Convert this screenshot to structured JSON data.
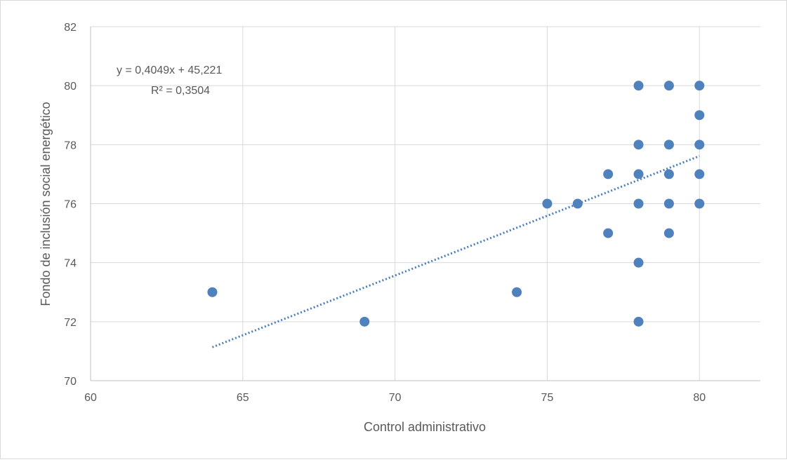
{
  "chart_data": {
    "type": "scatter",
    "title": "",
    "xlabel": "Control administrativo",
    "ylabel": "Fondo de inclusión social energético",
    "xlim": [
      60,
      82
    ],
    "ylim": [
      70,
      82
    ],
    "x_ticks": [
      60,
      65,
      70,
      75,
      80
    ],
    "y_ticks": [
      70,
      72,
      74,
      76,
      78,
      80,
      82
    ],
    "grid": true,
    "legend": "none",
    "marker_color": "#4f81bd",
    "trendline_color": "#4a7ebb",
    "points": [
      {
        "x": 64,
        "y": 73
      },
      {
        "x": 69,
        "y": 72
      },
      {
        "x": 74,
        "y": 73
      },
      {
        "x": 75,
        "y": 76
      },
      {
        "x": 76,
        "y": 76
      },
      {
        "x": 77,
        "y": 77
      },
      {
        "x": 77,
        "y": 75
      },
      {
        "x": 78,
        "y": 80
      },
      {
        "x": 78,
        "y": 78
      },
      {
        "x": 78,
        "y": 77
      },
      {
        "x": 78,
        "y": 76
      },
      {
        "x": 78,
        "y": 74
      },
      {
        "x": 78,
        "y": 72
      },
      {
        "x": 79,
        "y": 80
      },
      {
        "x": 79,
        "y": 78
      },
      {
        "x": 79,
        "y": 77
      },
      {
        "x": 79,
        "y": 76
      },
      {
        "x": 79,
        "y": 75
      },
      {
        "x": 80,
        "y": 80
      },
      {
        "x": 80,
        "y": 79
      },
      {
        "x": 80,
        "y": 78
      },
      {
        "x": 80,
        "y": 77
      },
      {
        "x": 80,
        "y": 76
      }
    ],
    "trendline": {
      "type": "linear",
      "slope": 0.4049,
      "intercept": 45.221,
      "x_range": [
        64,
        80
      ],
      "equation_label": "y = 0,4049x + 45,221",
      "r2_label": "R² = 0,3504"
    }
  }
}
